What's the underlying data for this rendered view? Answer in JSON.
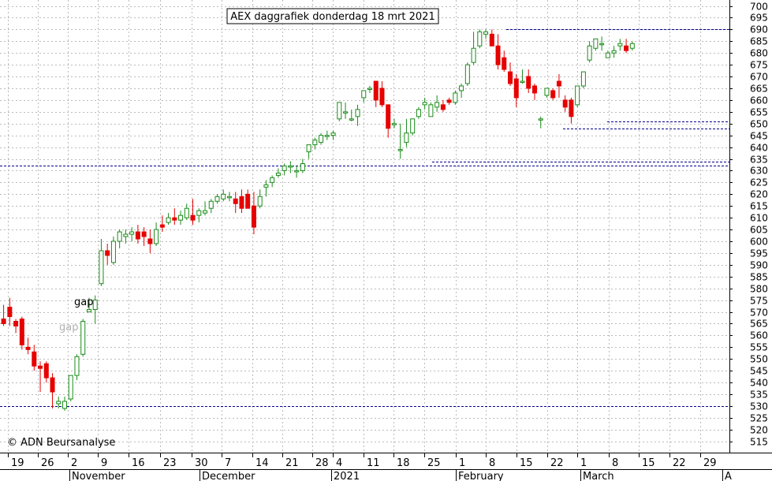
{
  "chart_data": {
    "type": "candlestick",
    "title": "AEX daggrafiek donderdag 18 mrt 2021",
    "copyright": "© ADN Beursanalyse",
    "y_axis": {
      "min": 512,
      "max": 703,
      "ticks": [
        515,
        520,
        525,
        530,
        535,
        540,
        545,
        550,
        555,
        560,
        565,
        570,
        575,
        580,
        585,
        590,
        595,
        600,
        605,
        610,
        615,
        620,
        625,
        630,
        635,
        640,
        645,
        650,
        655,
        660,
        665,
        670,
        675,
        680,
        685,
        690,
        695,
        700
      ]
    },
    "x_axis": {
      "day_labels": [
        "19",
        "26",
        "2",
        "9",
        "16",
        "23",
        "30",
        "7",
        "14",
        "21",
        "28",
        "4",
        "11",
        "18",
        "25",
        "1",
        "8",
        "15",
        "22",
        "1",
        "8",
        "15",
        "22",
        "29"
      ],
      "month_labels": [
        "November",
        "December",
        "2021",
        "February",
        "March",
        "A"
      ]
    },
    "annotations": [
      {
        "text": "gap",
        "color": "#000000"
      },
      {
        "text": "gap",
        "color": "#b0b0b0"
      }
    ],
    "horizontal_levels": [
      530,
      632,
      634,
      648,
      651,
      690,
      703
    ],
    "colors": {
      "up": "#1a8c1a",
      "down": "#e60000",
      "level": "#00008b",
      "grid": "#bbbbbb"
    },
    "candles": [
      [
        567,
        573,
        565,
        564
      ],
      [
        572,
        576,
        568,
        564
      ],
      [
        566,
        567,
        564,
        561
      ],
      [
        567,
        568,
        556,
        554
      ],
      [
        555,
        559,
        554,
        552
      ],
      [
        553,
        556,
        547,
        545
      ],
      [
        547,
        549,
        546,
        536
      ],
      [
        548,
        549,
        542,
        540
      ],
      [
        542,
        544,
        536,
        529
      ],
      [
        531,
        534,
        532,
        529
      ],
      [
        529,
        534,
        532,
        528
      ],
      [
        533,
        536,
        543,
        532
      ],
      [
        543,
        552,
        551,
        541
      ],
      [
        552,
        567,
        566,
        551
      ],
      [
        570,
        576,
        571,
        570
      ],
      [
        571,
        577,
        575,
        565
      ],
      [
        582,
        601,
        596,
        581
      ],
      [
        596,
        599,
        594,
        590
      ],
      [
        591,
        602,
        600,
        590
      ],
      [
        600,
        605,
        604,
        597
      ],
      [
        602,
        605,
        603,
        599
      ],
      [
        603,
        606,
        604,
        600
      ],
      [
        604,
        607,
        601,
        599
      ],
      [
        604,
        606,
        602,
        598
      ],
      [
        601,
        605,
        599,
        595
      ],
      [
        599,
        608,
        605,
        598
      ],
      [
        607,
        611,
        606,
        604
      ],
      [
        608,
        612,
        610,
        607
      ],
      [
        610,
        614,
        609,
        607
      ],
      [
        609,
        613,
        611,
        607
      ],
      [
        610,
        616,
        614,
        609
      ],
      [
        611,
        618,
        609,
        607
      ],
      [
        611,
        614,
        613,
        608
      ],
      [
        612,
        617,
        613,
        611
      ],
      [
        614,
        618,
        617,
        612
      ],
      [
        617,
        620,
        619,
        616
      ],
      [
        618,
        622,
        620,
        617
      ],
      [
        619,
        621,
        619,
        617
      ],
      [
        618,
        621,
        616,
        612
      ],
      [
        619,
        622,
        614,
        612
      ],
      [
        620,
        622,
        614,
        614
      ],
      [
        615,
        621,
        606,
        603
      ],
      [
        615,
        622,
        619,
        614
      ],
      [
        623,
        626,
        624,
        619
      ],
      [
        625,
        628,
        627,
        623
      ],
      [
        628,
        631,
        629,
        627
      ],
      [
        630,
        633,
        632,
        628
      ],
      [
        632,
        634,
        632,
        629
      ],
      [
        630,
        632,
        630,
        627
      ],
      [
        630,
        635,
        633,
        629
      ],
      [
        638,
        641,
        641,
        635
      ],
      [
        641,
        644,
        643,
        639
      ],
      [
        642,
        646,
        645,
        641
      ],
      [
        645,
        647,
        645,
        643
      ],
      [
        645,
        647,
        646,
        643
      ],
      [
        652,
        659,
        659,
        651
      ],
      [
        655,
        659,
        655,
        652
      ],
      [
        652,
        656,
        652,
        651
      ],
      [
        653,
        658,
        656,
        649
      ],
      [
        661,
        664,
        664,
        659
      ],
      [
        665,
        666,
        665,
        663
      ],
      [
        668,
        668,
        660,
        657
      ],
      [
        665,
        668,
        658,
        657
      ],
      [
        658,
        658,
        648,
        644
      ],
      [
        650,
        652,
        650,
        648
      ],
      [
        639,
        650,
        639,
        635
      ],
      [
        642,
        652,
        646,
        640
      ],
      [
        646,
        652,
        652,
        645
      ],
      [
        653,
        657,
        656,
        652
      ],
      [
        658,
        661,
        659,
        656
      ],
      [
        653,
        659,
        658,
        653
      ],
      [
        657,
        662,
        659,
        655
      ],
      [
        658,
        660,
        656,
        655
      ],
      [
        660,
        661,
        659,
        658
      ],
      [
        659,
        664,
        663,
        658
      ],
      [
        664,
        667,
        666,
        661
      ],
      [
        667,
        676,
        675,
        666
      ],
      [
        676,
        689,
        682,
        675
      ],
      [
        683,
        690,
        689,
        682
      ],
      [
        688,
        690,
        689,
        686
      ],
      [
        688,
        690,
        683,
        683
      ],
      [
        683,
        688,
        675,
        673
      ],
      [
        678,
        681,
        673,
        672
      ],
      [
        672,
        676,
        667,
        666
      ],
      [
        669,
        671,
        661,
        657
      ],
      [
        668,
        673,
        668,
        667
      ],
      [
        670,
        673,
        665,
        663
      ],
      [
        666,
        667,
        663,
        660
      ],
      [
        652,
        653,
        652,
        648
      ],
      [
        662,
        665,
        665,
        661
      ],
      [
        664,
        665,
        661,
        660
      ],
      [
        668,
        671,
        666,
        661
      ],
      [
        660,
        662,
        657,
        655
      ],
      [
        660,
        661,
        653,
        650
      ],
      [
        658,
        664,
        666,
        657
      ],
      [
        666,
        671,
        672,
        665
      ],
      [
        677,
        685,
        683,
        676
      ],
      [
        682,
        685,
        686,
        681
      ],
      [
        684,
        687,
        684,
        681
      ],
      [
        678,
        681,
        680,
        678
      ],
      [
        680,
        683,
        681,
        678
      ],
      [
        683,
        686,
        684,
        681
      ],
      [
        683,
        686,
        681,
        680
      ],
      [
        682,
        685,
        684,
        681
      ]
    ]
  }
}
